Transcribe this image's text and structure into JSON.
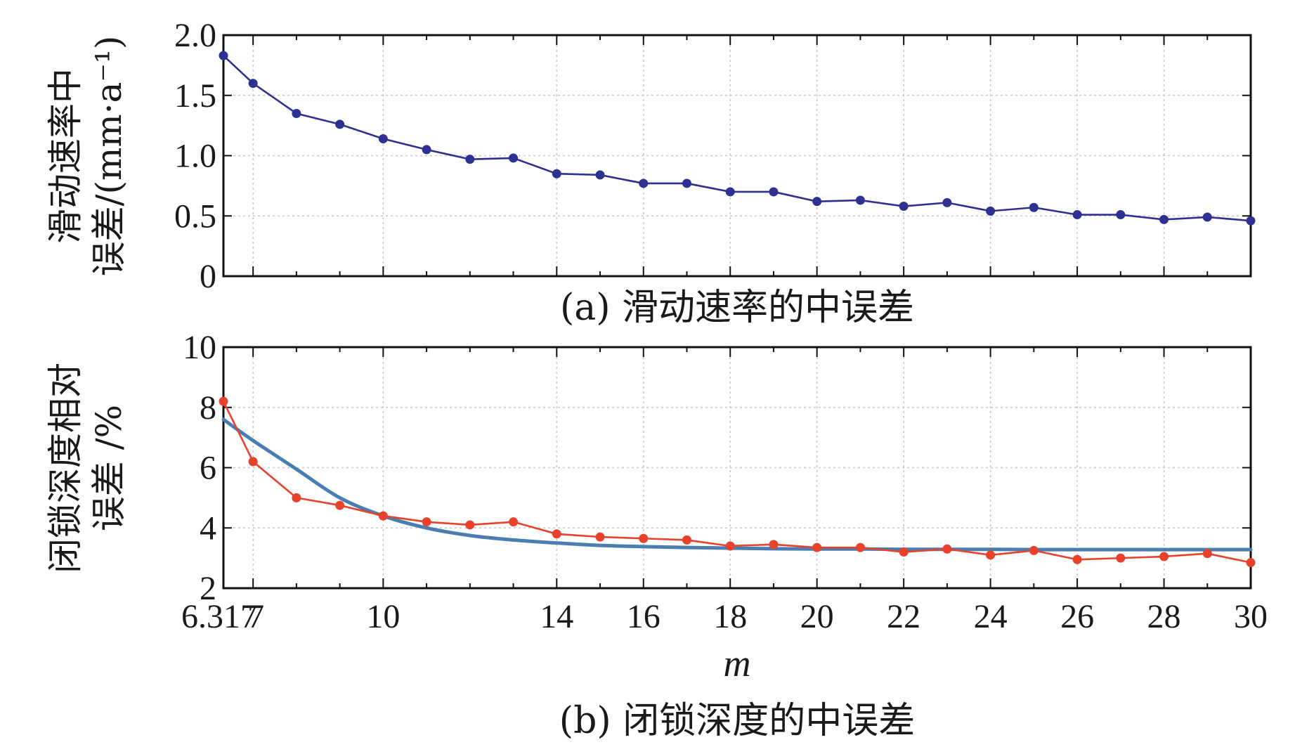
{
  "colors": {
    "slip_series": "#2e3192",
    "depth_series": "#e8412c",
    "depth_fit": "#4a7eb0"
  },
  "x_axis": {
    "label": "m",
    "ticks": [
      6.317,
      7,
      10,
      14,
      16,
      18,
      20,
      22,
      24,
      26,
      28,
      30
    ],
    "tick_labels": [
      "6.317",
      "7",
      "10",
      "14",
      "16",
      "18",
      "20",
      "22",
      "24",
      "26",
      "28",
      "30"
    ],
    "minor_ticks": [
      8,
      9,
      11,
      12,
      13,
      15,
      17,
      19,
      21,
      23,
      25,
      27,
      29
    ],
    "range": [
      6.317,
      30
    ]
  },
  "chart_data": [
    {
      "type": "line",
      "panel": "a",
      "caption": "(a) 滑动速率的中误差",
      "ylabel": "滑动速率中误差/(mm·a⁻¹)",
      "ylabel_lines": [
        "滑动速率中",
        "误差/(mm·a⁻¹)"
      ],
      "ylim": [
        0,
        2.0
      ],
      "yticks": [
        0,
        0.5,
        1.0,
        1.5,
        2.0
      ],
      "ytick_labels": [
        "0",
        "0.5",
        "1.0",
        "1.5",
        "2.0"
      ],
      "grid": true,
      "x": [
        6.317,
        7,
        8,
        9,
        10,
        11,
        12,
        13,
        14,
        15,
        16,
        17,
        18,
        19,
        20,
        21,
        22,
        23,
        24,
        25,
        26,
        27,
        28,
        29,
        30
      ],
      "series": [
        {
          "values": [
            1.83,
            1.6,
            1.35,
            1.26,
            1.14,
            1.05,
            0.97,
            0.98,
            0.85,
            0.84,
            0.77,
            0.77,
            0.7,
            0.7,
            0.62,
            0.63,
            0.58,
            0.61,
            0.54,
            0.57,
            0.51,
            0.51,
            0.47,
            0.49,
            0.46
          ],
          "markers": true
        }
      ]
    },
    {
      "type": "line",
      "panel": "b",
      "caption": "(b) 闭锁深度的中误差",
      "ylabel": "闭锁深度相对误差 /%",
      "ylabel_lines": [
        "闭锁深度相对",
        "误差 /%"
      ],
      "ylim": [
        2,
        10
      ],
      "yticks": [
        2,
        4,
        6,
        8,
        10
      ],
      "ytick_labels": [
        "2",
        "4",
        "6",
        "8",
        "10"
      ],
      "grid": true,
      "x": [
        6.317,
        7,
        8,
        9,
        10,
        11,
        12,
        13,
        14,
        15,
        16,
        17,
        18,
        19,
        20,
        21,
        22,
        23,
        24,
        25,
        26,
        27,
        28,
        29,
        30
      ],
      "series": [
        {
          "values": [
            8.2,
            6.2,
            5.0,
            4.75,
            4.4,
            4.2,
            4.1,
            4.2,
            3.8,
            3.7,
            3.65,
            3.6,
            3.4,
            3.45,
            3.35,
            3.35,
            3.2,
            3.3,
            3.1,
            3.25,
            2.95,
            3.0,
            3.05,
            3.15,
            2.85
          ],
          "markers": true
        },
        {
          "fit": "exponential",
          "values_at_x": [
            7.6,
            6.9,
            5.95,
            5.0,
            4.4,
            4.0,
            3.75,
            3.6,
            3.5,
            3.42,
            3.38,
            3.35,
            3.33,
            3.31,
            3.3,
            3.3,
            3.29,
            3.29,
            3.29,
            3.28,
            3.28,
            3.28,
            3.28,
            3.28,
            3.28
          ],
          "markers": false
        }
      ]
    }
  ]
}
